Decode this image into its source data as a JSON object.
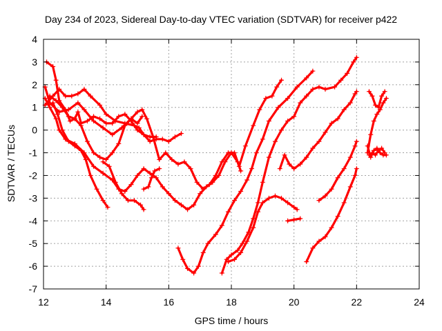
{
  "chart_data": {
    "type": "scatter",
    "title": "Day 234 of 2023, Sidereal Day-to-day VTEC variation (SDTVAR) for receiver p422",
    "xlabel": "GPS time / hours",
    "ylabel": "SDTVAR / TECUs",
    "xlim": [
      12,
      24
    ],
    "ylim": [
      -7,
      4
    ],
    "xticks": [
      12,
      14,
      16,
      18,
      20,
      22,
      24
    ],
    "yticks": [
      4,
      3,
      2,
      1,
      0,
      -1,
      -2,
      -3,
      -4,
      -5,
      -6,
      -7
    ],
    "grid": true,
    "marker": "plus",
    "color": "#ff0000",
    "series": [
      {
        "name": "s1",
        "points": [
          [
            12.05,
            1.1
          ],
          [
            12.3,
            1.5
          ],
          [
            12.5,
            1.8
          ],
          [
            12.7,
            1.5
          ],
          [
            12.9,
            1.5
          ],
          [
            13.1,
            1.6
          ],
          [
            13.3,
            1.8
          ],
          [
            13.5,
            1.5
          ],
          [
            13.8,
            1.1
          ],
          [
            14.0,
            0.7
          ],
          [
            14.3,
            0.4
          ],
          [
            14.6,
            0.3
          ],
          [
            14.9,
            0.2
          ],
          [
            15.05,
            0.1
          ],
          [
            15.2,
            -0.2
          ],
          [
            15.4,
            -0.5
          ],
          [
            15.6,
            -0.4
          ],
          [
            15.8,
            -0.4
          ],
          [
            16.0,
            -0.5
          ],
          [
            16.2,
            -0.3
          ],
          [
            16.4,
            -0.15
          ]
        ]
      },
      {
        "name": "s2",
        "points": [
          [
            12.05,
            1.9
          ],
          [
            12.2,
            1.2
          ],
          [
            12.5,
            0.8
          ],
          [
            12.8,
            0.9
          ],
          [
            13.1,
            1.2
          ],
          [
            13.3,
            0.9
          ],
          [
            13.6,
            0.4
          ],
          [
            13.9,
            0.1
          ],
          [
            14.2,
            -0.2
          ],
          [
            14.5,
            0.1
          ],
          [
            14.8,
            0.5
          ],
          [
            15.0,
            0.8
          ],
          [
            15.15,
            0.9
          ],
          [
            15.3,
            0.5
          ],
          [
            15.5,
            -0.3
          ],
          [
            15.7,
            -1.3
          ],
          [
            15.9,
            -1.0
          ],
          [
            16.1,
            -1.3
          ],
          [
            16.3,
            -1.5
          ],
          [
            16.5,
            -1.4
          ],
          [
            16.7,
            -1.7
          ],
          [
            16.9,
            -2.3
          ],
          [
            17.1,
            -2.6
          ],
          [
            17.3,
            -2.4
          ],
          [
            17.5,
            -2.0
          ],
          [
            17.7,
            -1.4
          ],
          [
            17.9,
            -1.0
          ],
          [
            18.1,
            -1.0
          ],
          [
            18.25,
            -1.6
          ],
          [
            18.45,
            -0.7
          ],
          [
            18.7,
            0.2
          ],
          [
            18.9,
            0.9
          ],
          [
            19.1,
            1.4
          ],
          [
            19.3,
            1.5
          ],
          [
            19.45,
            1.9
          ],
          [
            19.6,
            2.2
          ]
        ]
      },
      {
        "name": "s3",
        "points": [
          [
            12.05,
            1.4
          ],
          [
            12.2,
            1.0
          ],
          [
            12.4,
            0.5
          ],
          [
            12.5,
            0.0
          ],
          [
            12.7,
            -0.4
          ],
          [
            13.0,
            -0.6
          ],
          [
            13.3,
            -1.0
          ],
          [
            13.6,
            -1.6
          ],
          [
            13.9,
            -1.9
          ],
          [
            14.2,
            -2.2
          ],
          [
            14.4,
            -2.6
          ],
          [
            14.6,
            -2.7
          ],
          [
            14.8,
            -2.4
          ],
          [
            15.0,
            -2.0
          ],
          [
            15.2,
            -1.7
          ],
          [
            15.4,
            -1.9
          ],
          [
            15.6,
            -2.1
          ],
          [
            15.8,
            -2.5
          ],
          [
            16.0,
            -2.8
          ],
          [
            16.2,
            -3.1
          ],
          [
            16.4,
            -3.3
          ],
          [
            16.6,
            -3.5
          ],
          [
            16.8,
            -3.3
          ],
          [
            17.0,
            -2.8
          ],
          [
            17.2,
            -2.5
          ],
          [
            17.4,
            -2.3
          ],
          [
            17.6,
            -2.0
          ],
          [
            17.8,
            -1.4
          ],
          [
            18.0,
            -1.0
          ],
          [
            18.2,
            -1.4
          ],
          [
            18.3,
            -1.8
          ]
        ]
      },
      {
        "name": "s4",
        "points": [
          [
            12.1,
            3.0
          ],
          [
            12.3,
            2.8
          ],
          [
            12.4,
            2.2
          ],
          [
            12.5,
            1.3
          ],
          [
            12.7,
            0.9
          ],
          [
            12.85,
            0.4
          ],
          [
            13.0,
            0.5
          ],
          [
            13.2,
            0.2
          ],
          [
            13.4,
            -0.5
          ],
          [
            13.6,
            -1.0
          ],
          [
            13.8,
            -1.2
          ],
          [
            14.0,
            -1.3
          ],
          [
            14.2,
            -1.0
          ],
          [
            14.4,
            -0.6
          ],
          [
            14.6,
            0.2
          ],
          [
            14.8,
            0.5
          ],
          [
            15.0,
            0.3
          ],
          [
            15.15,
            0.6
          ]
        ]
      },
      {
        "name": "s5",
        "points": [
          [
            12.2,
            1.5
          ],
          [
            12.4,
            1.3
          ],
          [
            12.6,
            1.0
          ],
          [
            12.8,
            0.6
          ],
          [
            13.0,
            0.5
          ],
          [
            13.1,
            0.8
          ],
          [
            13.2,
            0.3
          ],
          [
            13.4,
            0.4
          ],
          [
            13.6,
            0.6
          ],
          [
            13.8,
            0.5
          ],
          [
            14.0,
            0.3
          ],
          [
            14.2,
            0.3
          ],
          [
            14.4,
            0.6
          ],
          [
            14.6,
            0.7
          ],
          [
            14.8,
            0.4
          ],
          [
            15.0,
            0.0
          ],
          [
            15.2,
            -0.2
          ],
          [
            15.4,
            -0.3
          ],
          [
            15.6,
            -0.3
          ]
        ]
      },
      {
        "name": "s6",
        "points": [
          [
            12.3,
            1.2
          ],
          [
            12.45,
            0.7
          ],
          [
            12.6,
            0.0
          ],
          [
            12.8,
            -0.5
          ],
          [
            13.0,
            -0.7
          ],
          [
            13.2,
            -0.9
          ],
          [
            13.35,
            -1.3
          ],
          [
            13.5,
            -2.0
          ],
          [
            13.7,
            -2.6
          ],
          [
            13.9,
            -3.1
          ],
          [
            14.05,
            -3.4
          ]
        ]
      },
      {
        "name": "s7",
        "points": [
          [
            13.9,
            -1.4
          ],
          [
            14.1,
            -1.6
          ],
          [
            14.3,
            -2.3
          ],
          [
            14.5,
            -2.8
          ],
          [
            14.7,
            -3.1
          ],
          [
            14.9,
            -3.1
          ],
          [
            15.1,
            -3.3
          ],
          [
            15.2,
            -3.5
          ]
        ]
      },
      {
        "name": "s8",
        "points": [
          [
            15.2,
            -2.6
          ],
          [
            15.35,
            -2.5
          ],
          [
            15.45,
            -2.1
          ],
          [
            15.55,
            -1.8
          ],
          [
            15.7,
            -1.7
          ]
        ]
      },
      {
        "name": "s9",
        "points": [
          [
            16.3,
            -5.2
          ],
          [
            16.45,
            -5.7
          ],
          [
            16.6,
            -6.1
          ],
          [
            16.8,
            -6.3
          ],
          [
            16.95,
            -6.0
          ],
          [
            17.1,
            -5.4
          ],
          [
            17.25,
            -5.0
          ],
          [
            17.5,
            -4.6
          ],
          [
            17.7,
            -4.2
          ],
          [
            17.9,
            -3.6
          ],
          [
            18.1,
            -3.1
          ],
          [
            18.3,
            -2.7
          ],
          [
            18.5,
            -2.2
          ],
          [
            18.65,
            -1.7
          ],
          [
            18.8,
            -1.0
          ],
          [
            19.0,
            -0.4
          ],
          [
            19.2,
            0.4
          ],
          [
            19.5,
            1.0
          ],
          [
            19.8,
            1.4
          ],
          [
            20.1,
            1.9
          ],
          [
            20.4,
            2.3
          ],
          [
            20.6,
            2.6
          ]
        ]
      },
      {
        "name": "s10",
        "points": [
          [
            17.7,
            -6.3
          ],
          [
            17.85,
            -5.7
          ],
          [
            18.0,
            -5.5
          ],
          [
            18.2,
            -5.3
          ],
          [
            18.35,
            -5.0
          ],
          [
            18.55,
            -4.5
          ],
          [
            18.7,
            -3.9
          ],
          [
            18.85,
            -3.2
          ],
          [
            19.0,
            -2.3
          ],
          [
            19.2,
            -1.2
          ],
          [
            19.4,
            -0.5
          ],
          [
            19.6,
            0.0
          ],
          [
            19.8,
            0.4
          ],
          [
            20.0,
            0.6
          ],
          [
            20.2,
            1.2
          ],
          [
            20.4,
            1.5
          ],
          [
            20.6,
            1.8
          ],
          [
            20.8,
            1.9
          ],
          [
            21.0,
            1.8
          ],
          [
            21.3,
            1.9
          ],
          [
            21.5,
            2.2
          ],
          [
            21.7,
            2.5
          ],
          [
            21.9,
            3.0
          ],
          [
            22.0,
            3.2
          ]
        ]
      },
      {
        "name": "s11",
        "points": [
          [
            17.9,
            -5.8
          ],
          [
            18.1,
            -5.7
          ],
          [
            18.3,
            -5.4
          ],
          [
            18.5,
            -4.9
          ],
          [
            18.7,
            -4.3
          ],
          [
            18.85,
            -3.6
          ],
          [
            19.0,
            -3.2
          ],
          [
            19.2,
            -3.0
          ],
          [
            19.4,
            -2.9
          ],
          [
            19.6,
            -3.0
          ],
          [
            19.8,
            -3.2
          ],
          [
            20.0,
            -3.4
          ],
          [
            20.1,
            -3.5
          ]
        ]
      },
      {
        "name": "s12",
        "points": [
          [
            19.55,
            -1.7
          ],
          [
            19.7,
            -1.1
          ],
          [
            19.85,
            -1.5
          ],
          [
            20.0,
            -1.7
          ],
          [
            20.2,
            -1.5
          ],
          [
            20.4,
            -1.2
          ],
          [
            20.6,
            -0.8
          ],
          [
            20.8,
            -0.5
          ],
          [
            21.0,
            -0.1
          ],
          [
            21.2,
            0.3
          ],
          [
            21.4,
            0.5
          ],
          [
            21.6,
            0.9
          ],
          [
            21.8,
            1.2
          ],
          [
            21.95,
            1.6
          ],
          [
            22.0,
            1.7
          ]
        ]
      },
      {
        "name": "s13",
        "points": [
          [
            19.8,
            -4.0
          ],
          [
            20.0,
            -3.95
          ],
          [
            20.2,
            -3.9
          ]
        ]
      },
      {
        "name": "s14",
        "points": [
          [
            20.8,
            -3.1
          ],
          [
            21.0,
            -2.9
          ],
          [
            21.2,
            -2.6
          ],
          [
            21.4,
            -2.1
          ],
          [
            21.6,
            -1.7
          ],
          [
            21.8,
            -1.2
          ],
          [
            21.95,
            -0.7
          ],
          [
            22.0,
            -0.5
          ]
        ]
      },
      {
        "name": "s15",
        "points": [
          [
            20.4,
            -5.8
          ],
          [
            20.6,
            -5.2
          ],
          [
            20.8,
            -4.9
          ],
          [
            21.0,
            -4.7
          ],
          [
            21.2,
            -4.3
          ],
          [
            21.4,
            -3.8
          ],
          [
            21.6,
            -3.2
          ],
          [
            21.8,
            -2.5
          ],
          [
            21.95,
            -2.0
          ],
          [
            22.0,
            -1.7
          ]
        ]
      },
      {
        "name": "s16",
        "points": [
          [
            22.4,
            1.7
          ],
          [
            22.5,
            1.5
          ],
          [
            22.6,
            1.1
          ],
          [
            22.7,
            1.0
          ],
          [
            22.8,
            1.5
          ],
          [
            22.9,
            1.7
          ]
        ]
      },
      {
        "name": "s17",
        "points": [
          [
            22.35,
            -1.0
          ],
          [
            22.45,
            -0.2
          ],
          [
            22.55,
            0.4
          ],
          [
            22.65,
            0.7
          ],
          [
            22.75,
            0.9
          ],
          [
            22.85,
            1.2
          ],
          [
            22.95,
            1.4
          ]
        ]
      },
      {
        "name": "s18",
        "points": [
          [
            22.35,
            -0.7
          ],
          [
            22.45,
            -1.2
          ],
          [
            22.55,
            -0.9
          ],
          [
            22.65,
            -0.8
          ],
          [
            22.75,
            -1.0
          ],
          [
            22.85,
            -1.1
          ],
          [
            22.95,
            -1.1
          ]
        ]
      },
      {
        "name": "s19",
        "points": [
          [
            22.4,
            -1.1
          ],
          [
            22.5,
            -1.0
          ],
          [
            22.6,
            -1.1
          ],
          [
            22.7,
            -0.9
          ],
          [
            22.8,
            -0.8
          ],
          [
            22.9,
            -1.0
          ]
        ]
      }
    ]
  }
}
